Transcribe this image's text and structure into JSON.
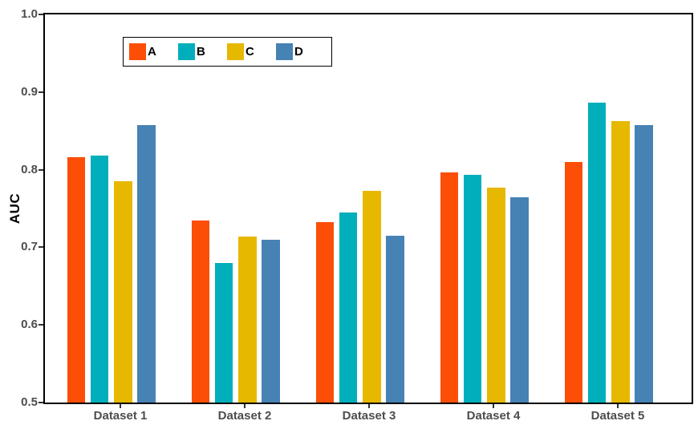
{
  "chart_data": {
    "type": "bar",
    "title": "",
    "xlabel": "",
    "ylabel": "AUC",
    "ylim": [
      0.5,
      1.0
    ],
    "yticks": [
      0.5,
      0.6,
      0.7,
      0.8,
      0.9,
      1.0
    ],
    "ytick_labels": [
      "0.5",
      "0.6",
      "0.7",
      "0.8",
      "0.9",
      "1.0"
    ],
    "categories": [
      "Dataset 1",
      "Dataset 2",
      "Dataset 3",
      "Dataset 4",
      "Dataset 5"
    ],
    "series": [
      {
        "name": "A",
        "color": "#FC4E07",
        "values": [
          0.816,
          0.735,
          0.732,
          0.797,
          0.81
        ]
      },
      {
        "name": "B",
        "color": "#00AFBB",
        "values": [
          0.818,
          0.68,
          0.745,
          0.793,
          0.886
        ]
      },
      {
        "name": "C",
        "color": "#E7B800",
        "values": [
          0.785,
          0.714,
          0.773,
          0.777,
          0.863
        ]
      },
      {
        "name": "D",
        "color": "#4682B4",
        "values": [
          0.857,
          0.71,
          0.715,
          0.765,
          0.858
        ]
      }
    ],
    "legend_position": "top-left-inside",
    "grid": false,
    "style": {
      "background": "#ffffff",
      "axis_color": "#000000",
      "tick_text_color": "#4d4d4d",
      "axis_title_color": "#000000"
    }
  }
}
